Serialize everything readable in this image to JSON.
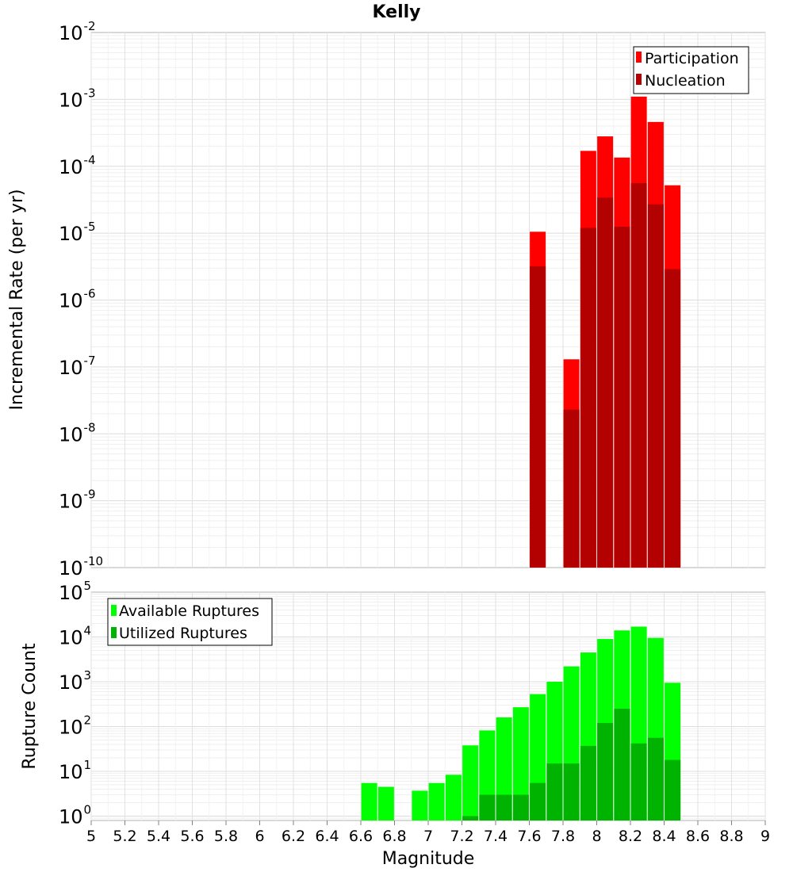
{
  "title": "Kelly",
  "x_axis_label": "Magnitude",
  "chart_data": [
    {
      "type": "bar",
      "title": "Kelly",
      "xlabel": "Magnitude",
      "ylabel": "Incremental Rate (per yr)",
      "yscale": "log",
      "xlim": [
        5,
        9
      ],
      "ylim": [
        1e-10,
        0.01
      ],
      "y_tick_exponents": [
        -10,
        -9,
        -8,
        -7,
        -6,
        -5,
        -4,
        -3,
        -2
      ],
      "grid": true,
      "legend_position": "top-right",
      "x": [
        7.65,
        7.85,
        7.95,
        8.05,
        8.15,
        8.25,
        8.35,
        8.45
      ],
      "series": [
        {
          "name": "Participation",
          "color": "#ff0000",
          "values": [
            1.05e-05,
            1.3e-07,
            0.00017,
            0.00028,
            0.000135,
            0.0011,
            0.00046,
            5.2e-05
          ]
        },
        {
          "name": "Nucleation",
          "color": "#b30000",
          "values": [
            3.2e-06,
            2.3e-08,
            1.2e-05,
            3.4e-05,
            1.25e-05,
            5.6e-05,
            2.7e-05,
            2.9e-06
          ]
        }
      ]
    },
    {
      "type": "bar",
      "xlabel": "Magnitude",
      "ylabel": "Rupture Count",
      "yscale": "log",
      "xlim": [
        5,
        9
      ],
      "ylim": [
        0.8,
        100000
      ],
      "y_tick_exponents": [
        0,
        1,
        2,
        3,
        4,
        5
      ],
      "grid": true,
      "legend_position": "top-left",
      "x_ticks": [
        "5",
        "5.2",
        "5.4",
        "5.6",
        "5.8",
        "6",
        "6.2",
        "6.4",
        "6.6",
        "6.8",
        "7",
        "7.2",
        "7.4",
        "7.6",
        "7.8",
        "8",
        "8.2",
        "8.4",
        "8.6",
        "8.8",
        "9"
      ],
      "x": [
        6.65,
        6.75,
        6.95,
        7.05,
        7.15,
        7.25,
        7.35,
        7.45,
        7.55,
        7.65,
        7.75,
        7.85,
        7.95,
        8.05,
        8.15,
        8.25,
        8.35,
        8.45
      ],
      "series": [
        {
          "name": "Available Ruptures",
          "color": "#00ff00",
          "values": [
            5.5,
            4.5,
            3.7,
            5.5,
            8.4,
            38,
            82,
            160,
            270,
            530,
            1000,
            2200,
            4500,
            9000,
            14000,
            17000,
            9500,
            950
          ]
        },
        {
          "name": "Utilized Ruptures",
          "color": "#00b300",
          "values": [
            0,
            0,
            0,
            0,
            0,
            1,
            3,
            3,
            3,
            5.5,
            15,
            15,
            37,
            120,
            250,
            42,
            56,
            18
          ]
        }
      ]
    }
  ]
}
